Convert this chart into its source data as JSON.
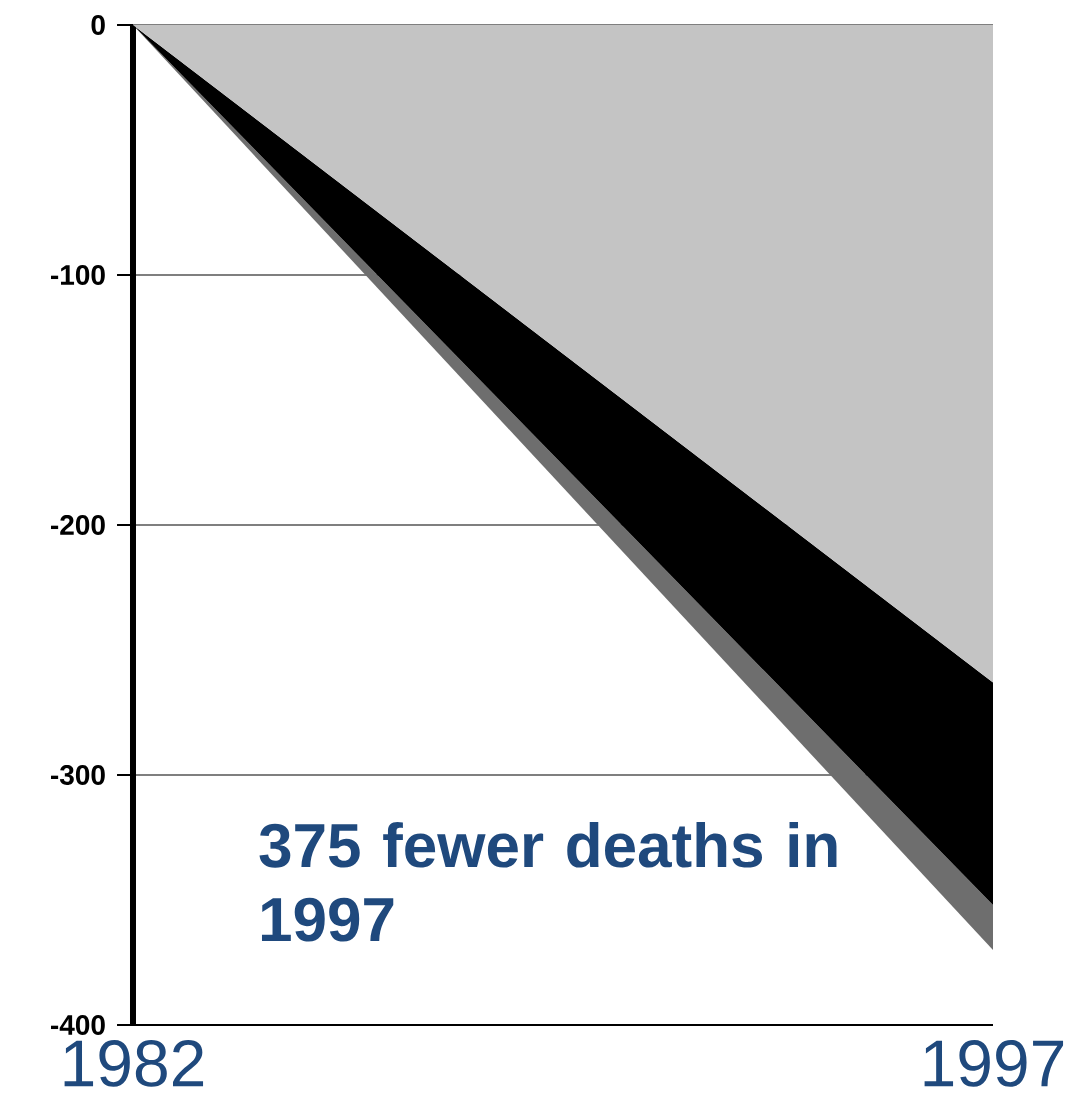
{
  "chart_data": {
    "type": "area",
    "stacked": true,
    "x": [
      1982,
      1997
    ],
    "series": [
      {
        "color": "#c4c4c4",
        "values": [
          0,
          -263
        ]
      },
      {
        "color": "#000000",
        "values": [
          0,
          -89
        ]
      },
      {
        "color": "#6e6e6e",
        "values": [
          0,
          -18
        ]
      }
    ],
    "xlim": [
      1982,
      1997
    ],
    "xticks": [
      1982,
      1997
    ],
    "ylim": [
      -400,
      0
    ],
    "yticks": [
      0,
      -100,
      -200,
      -300,
      -400
    ],
    "grid": "y",
    "annotations": [
      "375 fewer deaths in 1997"
    ]
  }
}
